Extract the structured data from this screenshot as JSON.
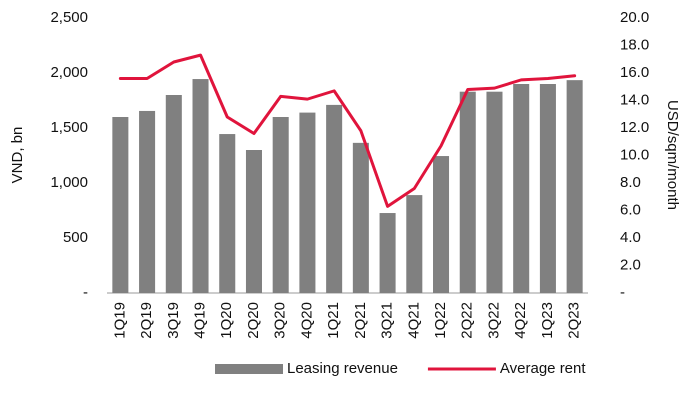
{
  "chart_data": {
    "type": "bar_line",
    "categories": [
      "1Q19",
      "2Q19",
      "3Q19",
      "4Q19",
      "1Q20",
      "2Q20",
      "3Q20",
      "4Q20",
      "1Q21",
      "2Q21",
      "3Q21",
      "4Q21",
      "1Q22",
      "2Q22",
      "3Q22",
      "4Q22",
      "1Q23",
      "2Q23"
    ],
    "series": [
      {
        "name": "Leasing revenue",
        "type": "bar",
        "color": "#808080",
        "axis": "y",
        "values": [
          1600,
          1655,
          1800,
          1945,
          1445,
          1300,
          1600,
          1640,
          1710,
          1365,
          727,
          890,
          1245,
          1830,
          1830,
          1900,
          1900,
          1935
        ]
      },
      {
        "name": "Average rent",
        "type": "line",
        "color": "#e0143c",
        "axis": "y2",
        "values": [
          15.6,
          15.6,
          16.8,
          17.3,
          12.8,
          11.6,
          14.3,
          14.1,
          14.7,
          11.8,
          6.3,
          7.6,
          10.7,
          14.8,
          14.9,
          15.5,
          15.6,
          15.8
        ]
      }
    ],
    "ylabel": "VND, bn",
    "y2label": "USD/sqm/month",
    "ylim": [
      0,
      2500
    ],
    "yticks": [
      {
        "value": 0,
        "label": "-"
      },
      500,
      {
        "value": 1000,
        "label": "1,000"
      },
      {
        "value": 1500,
        "label": "1,500"
      },
      {
        "value": 2000,
        "label": "2,000"
      },
      {
        "value": 2500,
        "label": "2,500"
      }
    ],
    "y2lim": [
      0,
      20
    ],
    "y2ticks": [
      {
        "value": 0,
        "label": "-"
      },
      {
        "value": 2,
        "label": "2.0"
      },
      {
        "value": 4,
        "label": "4.0"
      },
      {
        "value": 6,
        "label": "6.0"
      },
      {
        "value": 8,
        "label": "8.0"
      },
      {
        "value": 10,
        "label": "10.0"
      },
      {
        "value": 12,
        "label": "12.0"
      },
      {
        "value": 14,
        "label": "14.0"
      },
      {
        "value": 16,
        "label": "16.0"
      },
      {
        "value": 18,
        "label": "18.0"
      },
      {
        "value": 20,
        "label": "20.0"
      }
    ],
    "legend": "bottom",
    "grid": false
  }
}
